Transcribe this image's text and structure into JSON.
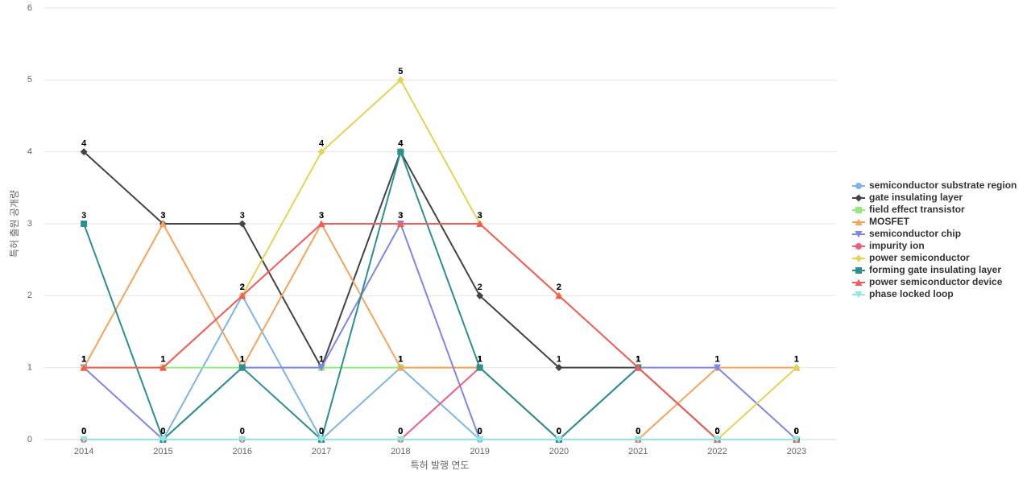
{
  "chart_data": {
    "type": "line",
    "x_label": "특허 발행 연도",
    "y_label": "특허 출원 공개량",
    "categories": [
      "2014",
      "2015",
      "2016",
      "2017",
      "2018",
      "2019",
      "2020",
      "2021",
      "2022",
      "2023"
    ],
    "ylim": [
      0,
      6
    ],
    "yticks": [
      0,
      1,
      2,
      3,
      4,
      5,
      6
    ],
    "grid": true,
    "legend": "right",
    "series": [
      {
        "name": "semiconductor substrate region",
        "color": "#7cb5ec",
        "values": [
          0,
          0,
          2,
          0,
          1,
          0,
          0,
          0,
          0,
          0
        ]
      },
      {
        "name": "gate insulating layer",
        "color": "#434348",
        "values": [
          4,
          3,
          3,
          1,
          4,
          2,
          1,
          1,
          0,
          0
        ]
      },
      {
        "name": "field effect transistor",
        "color": "#90ed7d",
        "values": [
          1,
          1,
          1,
          1,
          1,
          1,
          0,
          1,
          0,
          0
        ]
      },
      {
        "name": "MOSFET",
        "color": "#f7a35c",
        "values": [
          1,
          3,
          1,
          3,
          1,
          1,
          0,
          0,
          1,
          1
        ]
      },
      {
        "name": "semiconductor chip",
        "color": "#8085e9",
        "values": [
          1,
          0,
          1,
          1,
          3,
          0,
          0,
          1,
          1,
          0
        ]
      },
      {
        "name": "impurity ion",
        "color": "#f15c80",
        "values": [
          0,
          0,
          0,
          0,
          0,
          1,
          0,
          0,
          0,
          0
        ]
      },
      {
        "name": "power semiconductor",
        "color": "#e4d354",
        "values": [
          1,
          1,
          2,
          4,
          5,
          3,
          2,
          1,
          0,
          1
        ]
      },
      {
        "name": "forming gate insulating layer",
        "color": "#2b908f",
        "values": [
          3,
          0,
          1,
          0,
          4,
          1,
          0,
          1,
          0,
          0
        ]
      },
      {
        "name": "power semiconductor device",
        "color": "#f45b5b",
        "values": [
          1,
          1,
          2,
          3,
          3,
          3,
          2,
          1,
          0,
          0
        ]
      },
      {
        "name": "phase locked loop",
        "color": "#91e8e1",
        "values": [
          0,
          0,
          0,
          0,
          0,
          0,
          0,
          0,
          0,
          0
        ]
      }
    ]
  }
}
